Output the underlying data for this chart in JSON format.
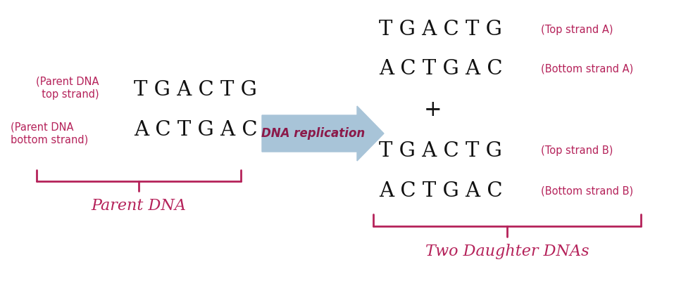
{
  "bg_color": "#ffffff",
  "crimson": "#b5225a",
  "black": "#111111",
  "arrow_color": "#a8c4d8",
  "arrow_text_color": "#8b1a4a",
  "parent_top_strand": "T G A C T G",
  "parent_bottom_strand": "A C T G A C",
  "parent_label_top": "(Parent DNA\n  top strand)",
  "parent_label_bottom": "(Parent DNA\nbottom strand)",
  "daughter_top_a": "T G A C T G",
  "daughter_bottom_a": "A C T G A C",
  "daughter_top_b": "T G A C T G",
  "daughter_bottom_b": "A C T G A C",
  "label_top_a": "(Top strand A)",
  "label_bottom_a": "(Bottom strand A)",
  "label_top_b": "(Top strand B)",
  "label_bottom_b": "(Bottom strand B)",
  "parent_dna_label": "Parent DNA",
  "daughter_dna_label": "Two Daughter DNAs",
  "arrow_label": "DNA replication",
  "plus_sign": "+",
  "dna_fontsize": 21,
  "small_label_fontsize": 10.5,
  "bracket_label_fontsize": 16,
  "arrow_fontsize": 12,
  "bracket_color": "#b5225a",
  "figw": 9.57,
  "figh": 4.0,
  "dpi": 100
}
